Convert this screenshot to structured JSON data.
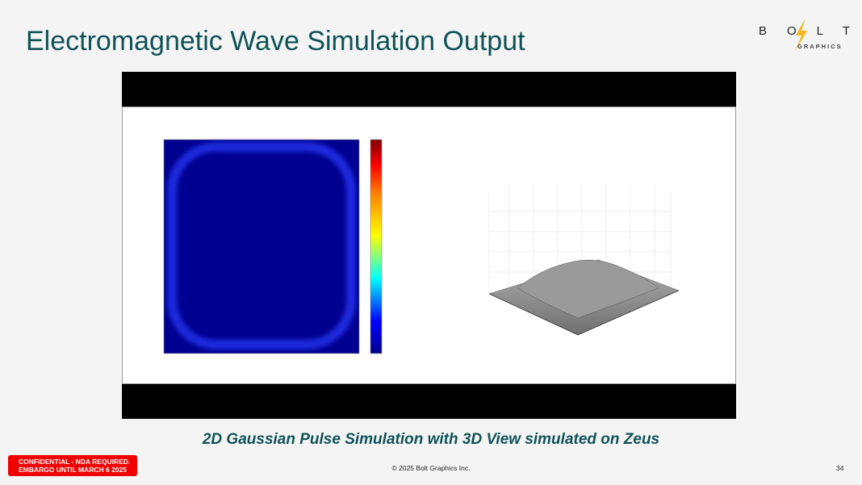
{
  "slide": {
    "title": "Electromagnetic Wave Simulation Output",
    "logo": {
      "word": "BOLT",
      "sub": "GRAPHICS",
      "accent": "#f5b820"
    },
    "caption": "2D Gaussian Pulse Simulation with 3D View simulated on Zeus",
    "badge": {
      "line1": "CONFIDENTIAL - NDA REQUIRED.",
      "line2": "EMBARGO UNTIL MARCH 6 2025",
      "color": "#f00000"
    },
    "copyright": "© 2025 Bolt Graphics Inc.",
    "page_number": "34",
    "title_color": "#0f5257"
  },
  "video": {
    "content": "simulation-output-video",
    "left_plot": "heatmap-jet-colormap",
    "right_plot": "3d-surface-grey"
  }
}
